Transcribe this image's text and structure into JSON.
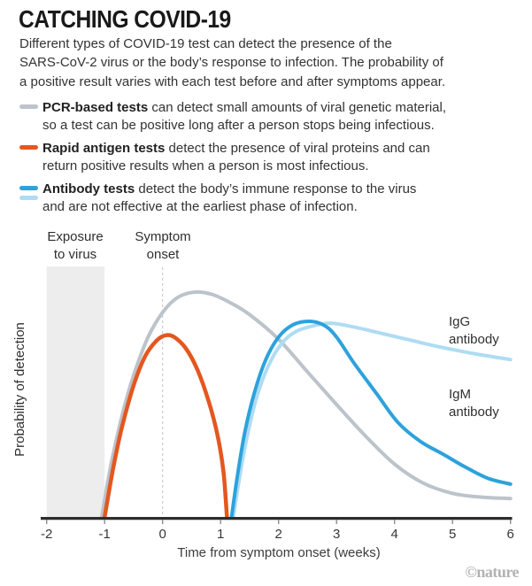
{
  "header": {
    "title": "CATCHING COVID-19",
    "intro_lines": [
      "Different types of COVID-19 test can detect the presence of the",
      "SARS-CoV-2 virus or the body’s response to infection. The probability of",
      "a positive result varies with each test before and after symptoms appear."
    ]
  },
  "legend": {
    "items": [
      {
        "bold": "PCR-based tests",
        "rest": " can detect small amounts of viral genetic material,",
        "line2": "so a test can be positive long after a person stops being infectious.",
        "colors": [
          "#bcc3cb"
        ]
      },
      {
        "bold": "Rapid antigen tests",
        "rest": " detect the presence of viral proteins and can",
        "line2": "return positive results when a person is most infectious.",
        "colors": [
          "#e4571f"
        ]
      },
      {
        "bold": "Antibody tests",
        "rest": " detect the body’s immune response to the virus",
        "line2": "and are not effective at the earliest phase of infection.",
        "colors": [
          "#2da2dc",
          "#aedcf4"
        ]
      }
    ]
  },
  "colors": {
    "band": "#ededed",
    "dash": "#c2c2c2",
    "axis": "#2d2d2d",
    "tick": "#8d8d8d",
    "tick_label": "#363636",
    "credit": "#b2b2b2"
  },
  "chart_data": {
    "type": "line",
    "title": "CATCHING COVID-19",
    "xlabel": "Time from symptom onset (weeks)",
    "ylabel": "Probability of detection",
    "xlim": [
      -2,
      6
    ],
    "ylim": [
      0,
      1
    ],
    "x_ticks": [
      -2,
      -1,
      0,
      1,
      2,
      3,
      4,
      5,
      6
    ],
    "grid": false,
    "exposure_band_weeks": [
      -2,
      -1
    ],
    "symptom_line_week": 0,
    "annotations": {
      "exposure_line1": "Exposure",
      "exposure_line2": "to virus",
      "symptom_line1": "Symptom",
      "symptom_line2": "onset",
      "igg_line1": "IgG",
      "igg_line2": "antibody",
      "igm_line1": "IgM",
      "igm_line2": "antibody"
    },
    "series": [
      {
        "name": "PCR-based tests",
        "color": "#bcc3cb",
        "width": 4,
        "points": [
          [
            -1.05,
            0
          ],
          [
            -0.9,
            0.22
          ],
          [
            -0.7,
            0.45
          ],
          [
            -0.5,
            0.63
          ],
          [
            -0.25,
            0.8
          ],
          [
            0,
            0.91
          ],
          [
            0.25,
            0.975
          ],
          [
            0.55,
            1.0
          ],
          [
            0.85,
            0.99
          ],
          [
            1.15,
            0.955
          ],
          [
            1.5,
            0.9
          ],
          [
            2.0,
            0.79
          ],
          [
            2.5,
            0.645
          ],
          [
            3.0,
            0.5
          ],
          [
            3.5,
            0.36
          ],
          [
            4.0,
            0.235
          ],
          [
            4.5,
            0.15
          ],
          [
            5.0,
            0.105
          ],
          [
            5.5,
            0.088
          ],
          [
            6.0,
            0.082
          ]
        ]
      },
      {
        "name": "Rapid antigen tests",
        "color": "#e4571f",
        "width": 4.5,
        "points": [
          [
            -1.0,
            0
          ],
          [
            -0.85,
            0.22
          ],
          [
            -0.7,
            0.4
          ],
          [
            -0.5,
            0.585
          ],
          [
            -0.3,
            0.715
          ],
          [
            -0.1,
            0.785
          ],
          [
            0.05,
            0.808
          ],
          [
            0.2,
            0.8
          ],
          [
            0.4,
            0.75
          ],
          [
            0.6,
            0.655
          ],
          [
            0.8,
            0.51
          ],
          [
            0.95,
            0.36
          ],
          [
            1.05,
            0.2
          ],
          [
            1.11,
            0
          ]
        ]
      },
      {
        "name": "IgG antibody",
        "color": "#aedcf4",
        "width": 4,
        "points": [
          [
            1.22,
            0
          ],
          [
            1.33,
            0.18
          ],
          [
            1.46,
            0.36
          ],
          [
            1.62,
            0.53
          ],
          [
            1.82,
            0.67
          ],
          [
            2.05,
            0.77
          ],
          [
            2.3,
            0.825
          ],
          [
            2.6,
            0.85
          ],
          [
            2.9,
            0.862
          ],
          [
            3.3,
            0.845
          ],
          [
            3.8,
            0.815
          ],
          [
            4.3,
            0.785
          ],
          [
            4.8,
            0.755
          ],
          [
            5.4,
            0.725
          ],
          [
            6.0,
            0.7
          ]
        ]
      },
      {
        "name": "IgM antibody",
        "color": "#2da2dc",
        "width": 4,
        "points": [
          [
            1.19,
            0
          ],
          [
            1.3,
            0.2
          ],
          [
            1.42,
            0.38
          ],
          [
            1.58,
            0.55
          ],
          [
            1.78,
            0.7
          ],
          [
            2.0,
            0.8
          ],
          [
            2.25,
            0.855
          ],
          [
            2.55,
            0.87
          ],
          [
            2.8,
            0.85
          ],
          [
            3.0,
            0.8
          ],
          [
            3.3,
            0.685
          ],
          [
            3.7,
            0.545
          ],
          [
            4.06,
            0.42
          ],
          [
            4.45,
            0.335
          ],
          [
            4.83,
            0.28
          ],
          [
            5.2,
            0.225
          ],
          [
            5.6,
            0.173
          ],
          [
            6.0,
            0.146
          ]
        ]
      }
    ]
  },
  "footer": {
    "credit": "©nature"
  }
}
